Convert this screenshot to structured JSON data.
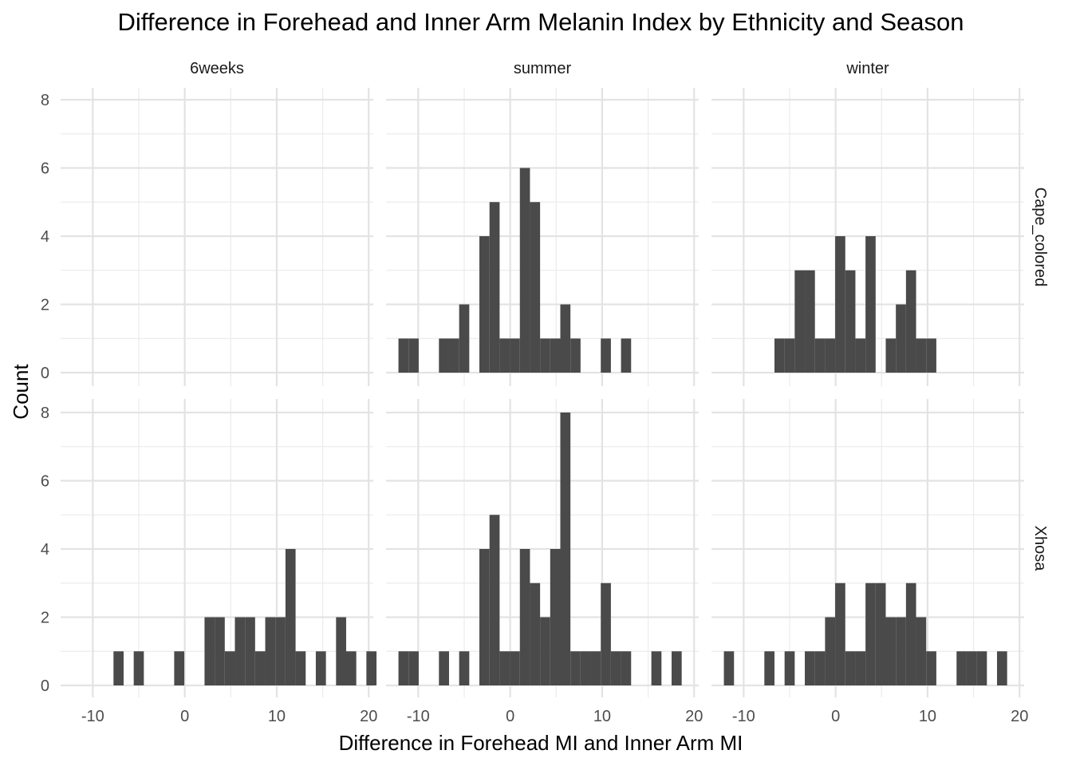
{
  "chart_data": {
    "type": "bar",
    "title": "Difference in Forehead and Inner Arm Melanin Index by Ethnicity and Season",
    "xlabel": "Difference in Forehead MI and Inner Arm MI",
    "ylabel": "Count",
    "xlim": [
      -13.5,
      20.5
    ],
    "ylim": [
      0,
      8
    ],
    "x_ticks": [
      -10,
      0,
      10,
      20
    ],
    "x_tick_labels": [
      "-10",
      "0",
      "10",
      "20"
    ],
    "y_ticks": [
      0,
      2,
      4,
      6,
      8
    ],
    "y_tick_labels": [
      "0",
      "2",
      "4",
      "6",
      "8"
    ],
    "bin_width": 1.1,
    "grid": true,
    "bar_color": "#4a4a4a",
    "columns": [
      "6weeks",
      "summer",
      "winter"
    ],
    "rows": [
      "Cape_colored",
      "Xhosa"
    ],
    "panels": [
      {
        "row": "Cape_colored",
        "column": "6weeks",
        "bins": []
      },
      {
        "row": "Cape_colored",
        "column": "summer",
        "bins": [
          {
            "x": -11.6,
            "count": 1
          },
          {
            "x": -10.5,
            "count": 1
          },
          {
            "x": -7.2,
            "count": 1
          },
          {
            "x": -6.1,
            "count": 1
          },
          {
            "x": -5.0,
            "count": 2
          },
          {
            "x": -2.8,
            "count": 4
          },
          {
            "x": -1.7,
            "count": 5
          },
          {
            "x": -0.6,
            "count": 1
          },
          {
            "x": 0.5,
            "count": 1
          },
          {
            "x": 1.6,
            "count": 6
          },
          {
            "x": 2.7,
            "count": 5
          },
          {
            "x": 3.8,
            "count": 1
          },
          {
            "x": 4.9,
            "count": 1
          },
          {
            "x": 6.0,
            "count": 2
          },
          {
            "x": 7.1,
            "count": 1
          },
          {
            "x": 10.4,
            "count": 1
          },
          {
            "x": 12.6,
            "count": 1
          }
        ]
      },
      {
        "row": "Cape_colored",
        "column": "winter",
        "bins": [
          {
            "x": -6.1,
            "count": 1
          },
          {
            "x": -5.0,
            "count": 1
          },
          {
            "x": -3.9,
            "count": 3
          },
          {
            "x": -2.8,
            "count": 3
          },
          {
            "x": -1.7,
            "count": 1
          },
          {
            "x": -0.6,
            "count": 1
          },
          {
            "x": 0.5,
            "count": 4
          },
          {
            "x": 1.6,
            "count": 3
          },
          {
            "x": 2.7,
            "count": 1
          },
          {
            "x": 3.8,
            "count": 4
          },
          {
            "x": 6.0,
            "count": 1
          },
          {
            "x": 7.1,
            "count": 2
          },
          {
            "x": 8.2,
            "count": 3
          },
          {
            "x": 9.3,
            "count": 1
          },
          {
            "x": 10.4,
            "count": 1
          }
        ]
      },
      {
        "row": "Xhosa",
        "column": "6weeks",
        "bins": [
          {
            "x": -7.2,
            "count": 1
          },
          {
            "x": -5.0,
            "count": 1
          },
          {
            "x": -0.6,
            "count": 1
          },
          {
            "x": 2.7,
            "count": 2
          },
          {
            "x": 3.8,
            "count": 2
          },
          {
            "x": 4.9,
            "count": 1
          },
          {
            "x": 6.0,
            "count": 2
          },
          {
            "x": 7.1,
            "count": 2
          },
          {
            "x": 8.2,
            "count": 1
          },
          {
            "x": 9.3,
            "count": 2
          },
          {
            "x": 10.4,
            "count": 2
          },
          {
            "x": 11.5,
            "count": 4
          },
          {
            "x": 12.6,
            "count": 1
          },
          {
            "x": 14.8,
            "count": 1
          },
          {
            "x": 17.0,
            "count": 2
          },
          {
            "x": 18.1,
            "count": 1
          },
          {
            "x": 20.3,
            "count": 1
          }
        ]
      },
      {
        "row": "Xhosa",
        "column": "summer",
        "bins": [
          {
            "x": -11.6,
            "count": 1
          },
          {
            "x": -10.5,
            "count": 1
          },
          {
            "x": -7.2,
            "count": 1
          },
          {
            "x": -5.0,
            "count": 1
          },
          {
            "x": -2.8,
            "count": 4
          },
          {
            "x": -1.7,
            "count": 5
          },
          {
            "x": -0.6,
            "count": 1
          },
          {
            "x": 0.5,
            "count": 1
          },
          {
            "x": 1.6,
            "count": 4
          },
          {
            "x": 2.7,
            "count": 3
          },
          {
            "x": 3.8,
            "count": 2
          },
          {
            "x": 4.9,
            "count": 4
          },
          {
            "x": 6.0,
            "count": 8
          },
          {
            "x": 7.1,
            "count": 1
          },
          {
            "x": 8.2,
            "count": 1
          },
          {
            "x": 9.3,
            "count": 1
          },
          {
            "x": 10.4,
            "count": 3
          },
          {
            "x": 11.5,
            "count": 1
          },
          {
            "x": 12.6,
            "count": 1
          },
          {
            "x": 15.9,
            "count": 1
          },
          {
            "x": 18.1,
            "count": 1
          }
        ]
      },
      {
        "row": "Xhosa",
        "column": "winter",
        "bins": [
          {
            "x": -11.6,
            "count": 1
          },
          {
            "x": -7.2,
            "count": 1
          },
          {
            "x": -5.0,
            "count": 1
          },
          {
            "x": -2.8,
            "count": 1
          },
          {
            "x": -1.7,
            "count": 1
          },
          {
            "x": -0.6,
            "count": 2
          },
          {
            "x": 0.5,
            "count": 3
          },
          {
            "x": 1.6,
            "count": 1
          },
          {
            "x": 2.7,
            "count": 1
          },
          {
            "x": 3.8,
            "count": 3
          },
          {
            "x": 4.9,
            "count": 3
          },
          {
            "x": 6.0,
            "count": 2
          },
          {
            "x": 7.1,
            "count": 2
          },
          {
            "x": 8.2,
            "count": 3
          },
          {
            "x": 9.3,
            "count": 2
          },
          {
            "x": 10.4,
            "count": 1
          },
          {
            "x": 13.7,
            "count": 1
          },
          {
            "x": 14.8,
            "count": 1
          },
          {
            "x": 15.9,
            "count": 1
          },
          {
            "x": 18.1,
            "count": 1
          }
        ]
      }
    ]
  }
}
